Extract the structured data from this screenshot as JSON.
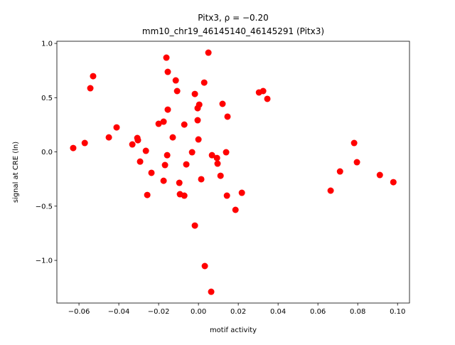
{
  "chart_data": {
    "type": "scatter",
    "title_line1": "Pitx3, ρ = −0.20",
    "title_line2": "mm10_chr19_46145140_46145291 (Pitx3)",
    "xlabel": "motif activity",
    "ylabel": "signal at CRE (ln)",
    "xlim": [
      -0.0711,
      0.106
    ],
    "ylim": [
      -1.393,
      1.02
    ],
    "xticks": [
      -0.06,
      -0.04,
      -0.02,
      0.0,
      0.02,
      0.04,
      0.06,
      0.08,
      0.1
    ],
    "xtick_labels": [
      "−0.06",
      "−0.04",
      "−0.02",
      "0.00",
      "0.02",
      "0.04",
      "0.06",
      "0.08",
      "0.10"
    ],
    "yticks": [
      -1.0,
      -0.5,
      0.0,
      0.5,
      1.0
    ],
    "ytick_labels": [
      "−1.0",
      "−0.5",
      "0.0",
      "0.5",
      "1.0"
    ],
    "grid": false,
    "marker_color": "#ff0000",
    "points": [
      [
        -0.0629,
        0.036
      ],
      [
        -0.0571,
        0.082
      ],
      [
        -0.0543,
        0.587
      ],
      [
        -0.0529,
        0.698
      ],
      [
        -0.045,
        0.134
      ],
      [
        -0.0411,
        0.226
      ],
      [
        -0.0332,
        0.069
      ],
      [
        -0.0307,
        0.128
      ],
      [
        -0.0304,
        0.108
      ],
      [
        -0.0293,
        -0.089
      ],
      [
        -0.0264,
        0.01
      ],
      [
        -0.0257,
        -0.397
      ],
      [
        -0.0236,
        -0.193
      ],
      [
        -0.02,
        0.259
      ],
      [
        -0.0175,
        0.279
      ],
      [
        -0.0175,
        -0.266
      ],
      [
        -0.0168,
        -0.121
      ],
      [
        -0.0161,
        0.869
      ],
      [
        -0.0154,
        0.738
      ],
      [
        -0.0154,
        0.39
      ],
      [
        -0.0157,
        -0.03
      ],
      [
        -0.0129,
        0.134
      ],
      [
        -0.0114,
        0.659
      ],
      [
        -0.0107,
        0.561
      ],
      [
        -0.0096,
        -0.285
      ],
      [
        -0.0093,
        -0.39
      ],
      [
        -0.0071,
        -0.403
      ],
      [
        -0.0071,
        0.252
      ],
      [
        -0.0061,
        -0.115
      ],
      [
        -0.0032,
        -0.003
      ],
      [
        -0.0018,
        0.534
      ],
      [
        -0.0018,
        -0.679
      ],
      [
        -0.0004,
        0.403
      ],
      [
        0.0004,
        0.436
      ],
      [
        -0.0004,
        0.292
      ],
      [
        0.0,
        0.115
      ],
      [
        0.0014,
        -0.252
      ],
      [
        0.0029,
        0.639
      ],
      [
        0.0032,
        -1.052
      ],
      [
        0.005,
        0.915
      ],
      [
        0.0064,
        -1.289
      ],
      [
        0.0068,
        -0.03
      ],
      [
        0.0093,
        -0.056
      ],
      [
        0.0096,
        -0.108
      ],
      [
        0.0111,
        -0.22
      ],
      [
        0.0121,
        0.443
      ],
      [
        0.0139,
        -0.003
      ],
      [
        0.0146,
        0.325
      ],
      [
        0.0143,
        -0.403
      ],
      [
        0.0186,
        -0.534
      ],
      [
        0.0218,
        -0.377
      ],
      [
        0.0304,
        0.548
      ],
      [
        0.0325,
        0.561
      ],
      [
        0.0346,
        0.489
      ],
      [
        0.0664,
        -0.357
      ],
      [
        0.0711,
        -0.18
      ],
      [
        0.0782,
        0.082
      ],
      [
        0.0796,
        -0.095
      ],
      [
        0.0911,
        -0.213
      ],
      [
        0.0979,
        -0.279
      ]
    ]
  }
}
